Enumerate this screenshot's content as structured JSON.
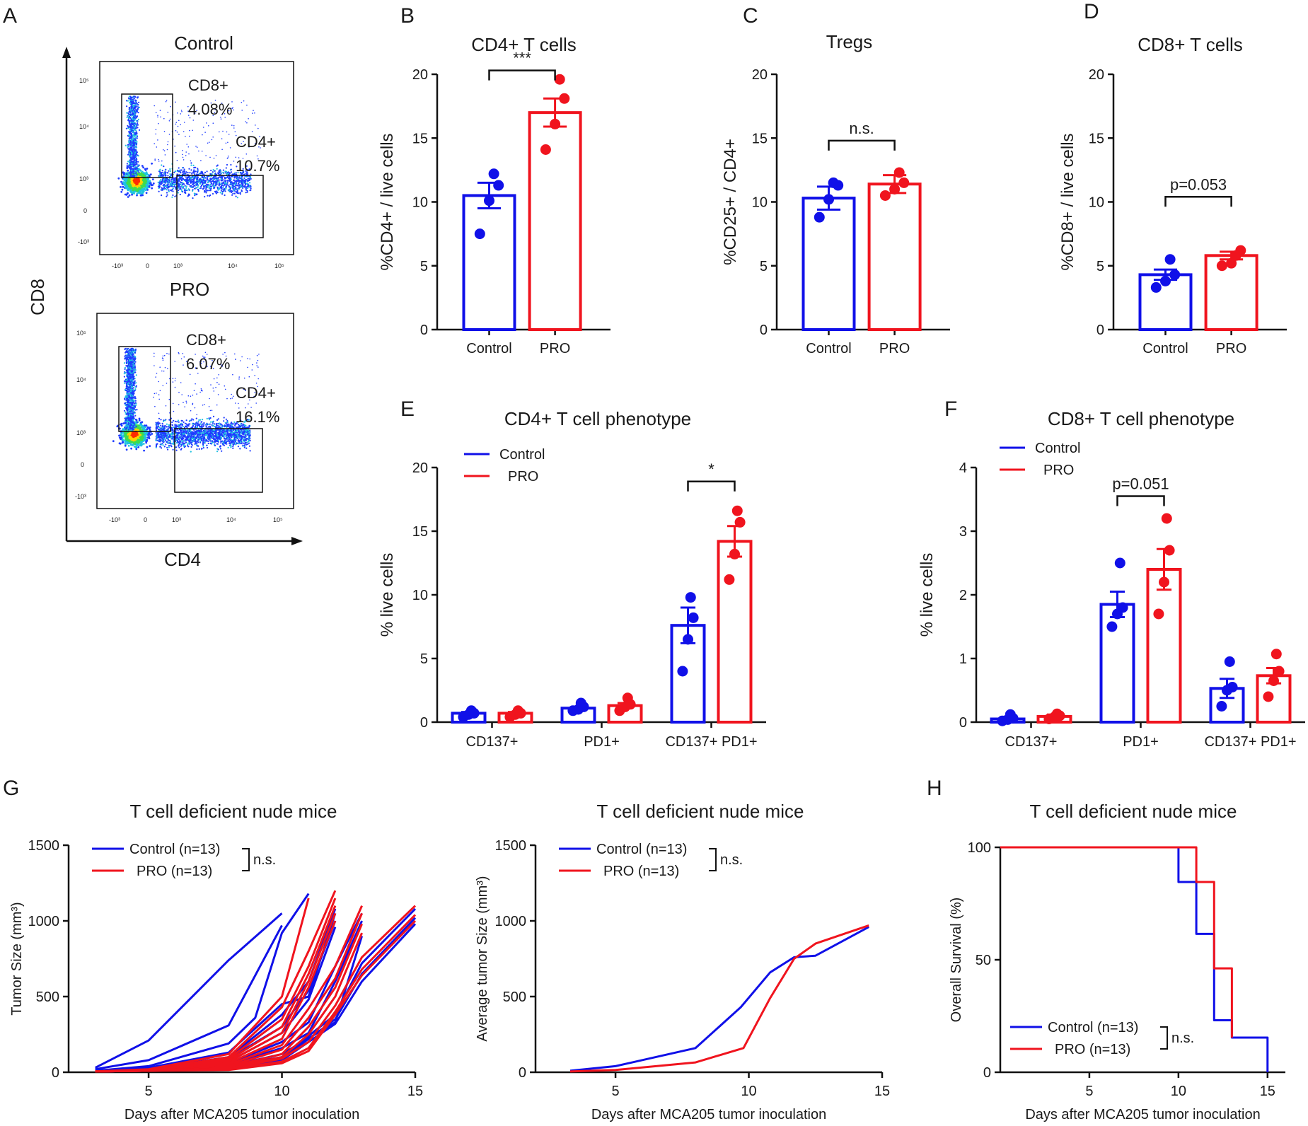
{
  "colors": {
    "control": "#1010e8",
    "pro": "#f0141e",
    "axis": "#111111"
  },
  "chart_data": [
    {
      "id": "A",
      "type": "scatter",
      "panel_label": "A",
      "title": "Control",
      "title2": "PRO",
      "xlabel": "CD4",
      "ylabel": "CD8",
      "xticks": [
        "-10³",
        "0",
        "10³",
        "10⁴",
        "10⁵"
      ],
      "yticks": [
        "10⁵",
        "10⁴",
        "10³",
        "0",
        "-10³"
      ],
      "plots": [
        {
          "name": "Control",
          "gates": [
            {
              "label": "CD8+",
              "pct": "4.08%"
            },
            {
              "label": "CD4+",
              "pct": "10.7%"
            }
          ]
        },
        {
          "name": "PRO",
          "gates": [
            {
              "label": "CD8+",
              "pct": "6.07%"
            },
            {
              "label": "CD4+",
              "pct": "16.1%"
            }
          ]
        }
      ]
    },
    {
      "id": "B",
      "type": "bar",
      "panel_label": "B",
      "title": "CD4+ T cells",
      "ylabel": "%CD4+ / live cells",
      "ylim": [
        0,
        20
      ],
      "yticks": [
        0,
        5,
        10,
        15,
        20
      ],
      "categories": [
        "Control",
        "PRO"
      ],
      "values": [
        10.5,
        17.0
      ],
      "sem": [
        1.0,
        1.1
      ],
      "points": [
        [
          7.5,
          10.1,
          11.3,
          12.2
        ],
        [
          14.1,
          16.1,
          18.1,
          19.6
        ]
      ],
      "significance": [
        {
          "from": 0,
          "to": 1,
          "label": "***",
          "y": 20.3
        }
      ]
    },
    {
      "id": "C",
      "type": "bar",
      "panel_label": "C",
      "title": "Tregs",
      "ylabel": "%CD25+ / CD4+",
      "ylim": [
        0,
        20
      ],
      "yticks": [
        0,
        5,
        10,
        15,
        20
      ],
      "categories": [
        "Control",
        "PRO"
      ],
      "values": [
        10.3,
        11.4
      ],
      "sem": [
        0.9,
        0.7
      ],
      "points": [
        [
          8.8,
          10.2,
          11.3,
          11.5
        ],
        [
          10.5,
          11.0,
          11.5,
          12.3
        ]
      ],
      "significance": [
        {
          "from": 0,
          "to": 1,
          "label": "n.s.",
          "y": 14.8
        }
      ]
    },
    {
      "id": "D",
      "type": "bar",
      "panel_label": "D",
      "title": "CD8+ T cells",
      "ylabel": "%CD8+ / live cells",
      "ylim": [
        0,
        20
      ],
      "yticks": [
        0,
        5,
        10,
        15,
        20
      ],
      "categories": [
        "Control",
        "PRO"
      ],
      "values": [
        4.3,
        5.8
      ],
      "sem": [
        0.4,
        0.3
      ],
      "points": [
        [
          3.3,
          3.8,
          4.3,
          5.5
        ],
        [
          5.0,
          5.2,
          6.2,
          5.8
        ]
      ],
      "significance": [
        {
          "from": 0,
          "to": 1,
          "label": "p=0.053",
          "y": 10.4
        }
      ]
    },
    {
      "id": "E",
      "type": "bar",
      "panel_label": "E",
      "title": "CD4+ T cell phenotype",
      "ylabel": "% live cells",
      "ylim": [
        0,
        20
      ],
      "yticks": [
        0,
        5,
        10,
        15,
        20
      ],
      "categories": [
        "CD137+",
        "PD1+",
        "CD137+ PD1+"
      ],
      "legend": [
        "Control",
        "PRO"
      ],
      "series": [
        {
          "name": "Control",
          "values": [
            0.7,
            1.1,
            7.6
          ],
          "sem": [
            0.1,
            0.1,
            1.4
          ],
          "points": [
            [
              0.4,
              0.6,
              0.7,
              0.9
            ],
            [
              0.9,
              1.0,
              1.2,
              1.5
            ],
            [
              4.0,
              6.5,
              8.2,
              9.8
            ]
          ]
        },
        {
          "name": "PRO",
          "values": [
            0.7,
            1.3,
            14.2
          ],
          "sem": [
            0.1,
            0.2,
            1.2
          ],
          "points": [
            [
              0.4,
              0.6,
              0.7,
              0.9
            ],
            [
              0.9,
              1.2,
              1.4,
              1.9
            ],
            [
              11.2,
              13.2,
              15.7,
              16.6
            ]
          ]
        }
      ],
      "significance": [
        {
          "category": 2,
          "label": "*",
          "y": 18.9
        }
      ]
    },
    {
      "id": "F",
      "type": "bar",
      "panel_label": "F",
      "title": "CD8+ T cell phenotype",
      "ylabel": "% live cells",
      "ylim": [
        0,
        4
      ],
      "yticks": [
        0,
        1,
        2,
        3,
        4
      ],
      "categories": [
        "CD137+",
        "PD1+",
        "CD137+ PD1+"
      ],
      "legend": [
        "Control",
        "PRO"
      ],
      "series": [
        {
          "name": "Control",
          "values": [
            0.05,
            1.85,
            0.53
          ],
          "sem": [
            0.03,
            0.2,
            0.15
          ],
          "points": [
            [
              0.02,
              0.04,
              0.06,
              0.12
            ],
            [
              1.5,
              1.7,
              1.8,
              2.5
            ],
            [
              0.25,
              0.5,
              0.55,
              0.95
            ]
          ]
        },
        {
          "name": "PRO",
          "values": [
            0.09,
            2.4,
            0.73
          ],
          "sem": [
            0.03,
            0.32,
            0.12
          ],
          "points": [
            [
              0.05,
              0.08,
              0.1,
              0.13
            ],
            [
              1.7,
              2.2,
              2.7,
              3.2
            ],
            [
              0.4,
              0.65,
              0.8,
              1.07
            ]
          ]
        }
      ],
      "significance": [
        {
          "category": 1,
          "label": "p=0.051",
          "y": 3.55
        }
      ]
    },
    {
      "id": "G1",
      "type": "line",
      "panel_label": "G",
      "title": "T cell deficient nude mice",
      "xlabel": "Days after MCA205 tumor inoculation",
      "ylabel": "Tumor Size (mm³)",
      "xlim": [
        2,
        15
      ],
      "ylim": [
        0,
        1500
      ],
      "xticks": [
        5,
        10,
        15
      ],
      "yticks": [
        0,
        500,
        1000,
        1500
      ],
      "legend": [
        "Control (n=13)",
        "PRO (n=13)"
      ],
      "legend_note": "n.s.",
      "series": [
        {
          "name": "Control",
          "x": [
            3,
            5,
            8,
            10
          ],
          "y": [
            30,
            210,
            740,
            1050
          ]
        },
        {
          "name": "Control",
          "x": [
            3,
            5,
            8,
            10
          ],
          "y": [
            20,
            80,
            310,
            970
          ]
        },
        {
          "name": "Control",
          "x": [
            3,
            5,
            8,
            9,
            10,
            11
          ],
          "y": [
            10,
            40,
            190,
            360,
            920,
            1180
          ]
        },
        {
          "name": "Control",
          "x": [
            3,
            5,
            8,
            10,
            11,
            12
          ],
          "y": [
            10,
            30,
            130,
            450,
            500,
            1050
          ]
        },
        {
          "name": "Control",
          "x": [
            3,
            5,
            8,
            10,
            11,
            12
          ],
          "y": [
            5,
            20,
            100,
            380,
            600,
            1080
          ]
        },
        {
          "name": "Control",
          "x": [
            3,
            5,
            8,
            10,
            11,
            12
          ],
          "y": [
            5,
            20,
            90,
            300,
            540,
            1000
          ]
        },
        {
          "name": "Control",
          "x": [
            3,
            5,
            8,
            10,
            11,
            12
          ],
          "y": [
            5,
            20,
            70,
            260,
            480,
            960
          ]
        },
        {
          "name": "Control",
          "x": [
            3,
            5,
            8,
            10,
            11,
            12,
            13
          ],
          "y": [
            5,
            15,
            60,
            200,
            330,
            700,
            1050
          ]
        },
        {
          "name": "Control",
          "x": [
            3,
            5,
            8,
            10,
            11,
            12,
            13
          ],
          "y": [
            5,
            15,
            50,
            160,
            260,
            600,
            1000
          ]
        },
        {
          "name": "Control",
          "x": [
            3,
            5,
            8,
            10,
            12,
            13
          ],
          "y": [
            5,
            15,
            40,
            120,
            330,
            900
          ]
        },
        {
          "name": "Control",
          "x": [
            3,
            5,
            8,
            10,
            12,
            13,
            15
          ],
          "y": [
            5,
            10,
            40,
            100,
            380,
            720,
            1080
          ]
        },
        {
          "name": "Control",
          "x": [
            3,
            5,
            8,
            10,
            12,
            13,
            15
          ],
          "y": [
            5,
            10,
            30,
            90,
            350,
            650,
            1020
          ]
        },
        {
          "name": "Control",
          "x": [
            3,
            5,
            8,
            10,
            12,
            13,
            15
          ],
          "y": [
            5,
            10,
            25,
            80,
            320,
            600,
            980
          ]
        },
        {
          "name": "PRO",
          "x": [
            3,
            5,
            8,
            10,
            11
          ],
          "y": [
            5,
            20,
            120,
            500,
            1150
          ]
        },
        {
          "name": "PRO",
          "x": [
            3,
            5,
            8,
            10,
            11,
            12
          ],
          "y": [
            5,
            15,
            100,
            430,
            800,
            1200
          ]
        },
        {
          "name": "PRO",
          "x": [
            3,
            5,
            8,
            10,
            11,
            12
          ],
          "y": [
            5,
            15,
            90,
            350,
            700,
            1150
          ]
        },
        {
          "name": "PRO",
          "x": [
            3,
            5,
            8,
            10,
            11,
            12
          ],
          "y": [
            5,
            15,
            80,
            300,
            650,
            1100
          ]
        },
        {
          "name": "PRO",
          "x": [
            3,
            5,
            8,
            10,
            11,
            12
          ],
          "y": [
            5,
            15,
            70,
            260,
            600,
            1050
          ]
        },
        {
          "name": "PRO",
          "x": [
            3,
            5,
            8,
            10,
            11,
            12
          ],
          "y": [
            5,
            15,
            60,
            220,
            560,
            1000
          ]
        },
        {
          "name": "PRO",
          "x": [
            3,
            5,
            8,
            10,
            11,
            12,
            13
          ],
          "y": [
            5,
            10,
            50,
            180,
            420,
            700,
            1100
          ]
        },
        {
          "name": "PRO",
          "x": [
            3,
            5,
            8,
            10,
            11,
            12,
            13
          ],
          "y": [
            5,
            10,
            40,
            150,
            360,
            620,
            1050
          ]
        },
        {
          "name": "PRO",
          "x": [
            3,
            5,
            8,
            10,
            11,
            12,
            13
          ],
          "y": [
            5,
            10,
            35,
            120,
            300,
            560,
            980
          ]
        },
        {
          "name": "PRO",
          "x": [
            3,
            5,
            8,
            10,
            11,
            12,
            13
          ],
          "y": [
            5,
            10,
            30,
            100,
            250,
            500,
            920
          ]
        },
        {
          "name": "PRO",
          "x": [
            3,
            5,
            8,
            10,
            11,
            12,
            13,
            15
          ],
          "y": [
            5,
            10,
            25,
            90,
            200,
            440,
            760,
            1100
          ]
        },
        {
          "name": "PRO",
          "x": [
            3,
            5,
            8,
            10,
            11,
            12,
            13,
            15
          ],
          "y": [
            5,
            10,
            20,
            70,
            160,
            400,
            680,
            1040
          ]
        },
        {
          "name": "PRO",
          "x": [
            3,
            5,
            8,
            10,
            11,
            12,
            13,
            15
          ],
          "y": [
            5,
            10,
            15,
            60,
            140,
            380,
            640,
            1000
          ]
        }
      ]
    },
    {
      "id": "G2",
      "type": "line",
      "panel_label": "",
      "title": "T cell deficient nude mice",
      "xlabel": "Days after MCA205 tumor inoculation",
      "ylabel": "Average tumor Size (mm³)",
      "xlim": [
        2,
        15
      ],
      "ylim": [
        0,
        1500
      ],
      "xticks": [
        5,
        10,
        15
      ],
      "yticks": [
        0,
        500,
        1000,
        1500
      ],
      "legend": [
        "Control (n=13)",
        "PRO (n=13)"
      ],
      "legend_note": "n.s.",
      "series": [
        {
          "name": "Control",
          "x": [
            3.3,
            5,
            8,
            9.7,
            10.8,
            11.7,
            12.5,
            14.5
          ],
          "y": [
            10,
            40,
            160,
            430,
            660,
            760,
            770,
            960
          ]
        },
        {
          "name": "PRO",
          "x": [
            3.3,
            5,
            8,
            9.8,
            10.8,
            11.7,
            12.5,
            14.5
          ],
          "y": [
            5,
            15,
            65,
            160,
            490,
            750,
            850,
            970
          ]
        }
      ]
    },
    {
      "id": "H",
      "type": "line",
      "panel_label": "H",
      "title": "T cell deficient nude mice",
      "xlabel": "Days after MCA205 tumor inoculation",
      "ylabel": "Overall Survival (%)",
      "xlim": [
        0,
        16
      ],
      "ylim": [
        0,
        100
      ],
      "xticks": [
        5,
        10,
        15
      ],
      "yticks": [
        0,
        50,
        100
      ],
      "legend": [
        "Control (n=13)",
        "PRO (n=13)"
      ],
      "legend_note": "n.s.",
      "series": [
        {
          "name": "Control",
          "x": [
            0,
            10,
            10,
            11,
            11,
            12,
            12,
            13,
            13,
            15,
            15
          ],
          "y": [
            100,
            100,
            84.6,
            84.6,
            61.5,
            61.5,
            23.1,
            23.1,
            15.4,
            15.4,
            0
          ]
        },
        {
          "name": "PRO",
          "x": [
            0,
            11,
            11,
            12,
            12,
            13,
            13
          ],
          "y": [
            100,
            100,
            84.6,
            84.6,
            46.2,
            46.2,
            15.4
          ]
        }
      ]
    }
  ]
}
